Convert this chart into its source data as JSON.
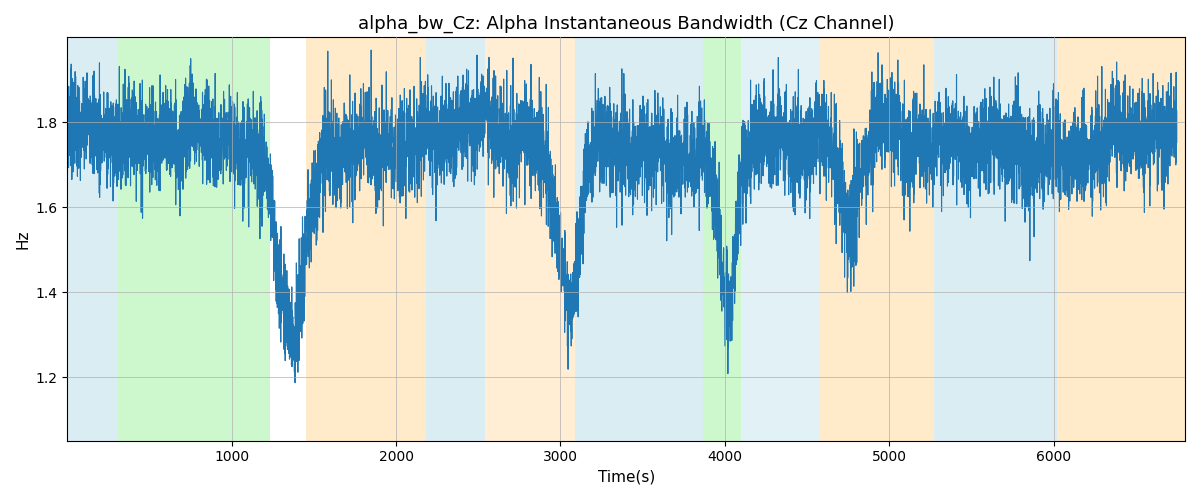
{
  "title": "alpha_bw_Cz: Alpha Instantaneous Bandwidth (Cz Channel)",
  "xlabel": "Time(s)",
  "ylabel": "Hz",
  "line_color": "#1f77b4",
  "xlim": [
    0,
    6800
  ],
  "ylim": [
    1.05,
    2.0
  ],
  "yticks": [
    1.2,
    1.4,
    1.6,
    1.8
  ],
  "xticks": [
    1000,
    2000,
    3000,
    4000,
    5000,
    6000
  ],
  "regions": [
    {
      "start": 0,
      "end": 310,
      "color": "#add8e6",
      "alpha": 0.45
    },
    {
      "start": 310,
      "end": 1230,
      "color": "#90ee90",
      "alpha": 0.45
    },
    {
      "start": 1450,
      "end": 2180,
      "color": "#ffd9a0",
      "alpha": 0.55
    },
    {
      "start": 2180,
      "end": 2540,
      "color": "#add8e6",
      "alpha": 0.45
    },
    {
      "start": 2540,
      "end": 3090,
      "color": "#ffd9a0",
      "alpha": 0.45
    },
    {
      "start": 3090,
      "end": 3870,
      "color": "#add8e6",
      "alpha": 0.45
    },
    {
      "start": 3870,
      "end": 4100,
      "color": "#90ee90",
      "alpha": 0.45
    },
    {
      "start": 4100,
      "end": 4580,
      "color": "#add8e6",
      "alpha": 0.35
    },
    {
      "start": 4580,
      "end": 5270,
      "color": "#ffd9a0",
      "alpha": 0.55
    },
    {
      "start": 5270,
      "end": 6020,
      "color": "#add8e6",
      "alpha": 0.45
    },
    {
      "start": 6020,
      "end": 6800,
      "color": "#ffd9a0",
      "alpha": 0.55
    }
  ],
  "figsize": [
    12.0,
    5.0
  ],
  "dpi": 100,
  "linewidth": 0.8,
  "seed": 7,
  "base_mean": 1.755,
  "noise_amplitude": 0.055,
  "slow_amplitude": 0.025,
  "med_amplitude": 0.015
}
